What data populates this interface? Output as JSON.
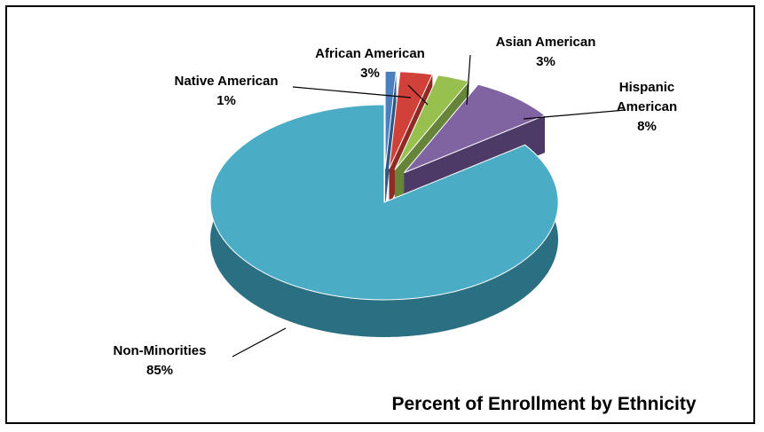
{
  "chart_data": {
    "type": "pie",
    "title": "Percent of Enrollment by Ethnicity",
    "slices": [
      {
        "name": "Native American",
        "value": 1,
        "label": "1%",
        "color": "#4a7fc0",
        "side": "#2f5688"
      },
      {
        "name": "African American",
        "value": 3,
        "label": "3%",
        "color": "#d0413a",
        "side": "#8f2a25"
      },
      {
        "name": "Asian American",
        "value": 3,
        "label": "3%",
        "color": "#97c04f",
        "side": "#66853a"
      },
      {
        "name": "Hispanic American",
        "value": 8,
        "label": "8%",
        "color": "#8064a2",
        "side": "#4d3a66"
      },
      {
        "name": "Non-Minorities",
        "value": 85,
        "label": "85%",
        "color": "#4bacc6",
        "side": "#2a6f82"
      }
    ],
    "legend": "none",
    "style": "3d-exploded"
  }
}
